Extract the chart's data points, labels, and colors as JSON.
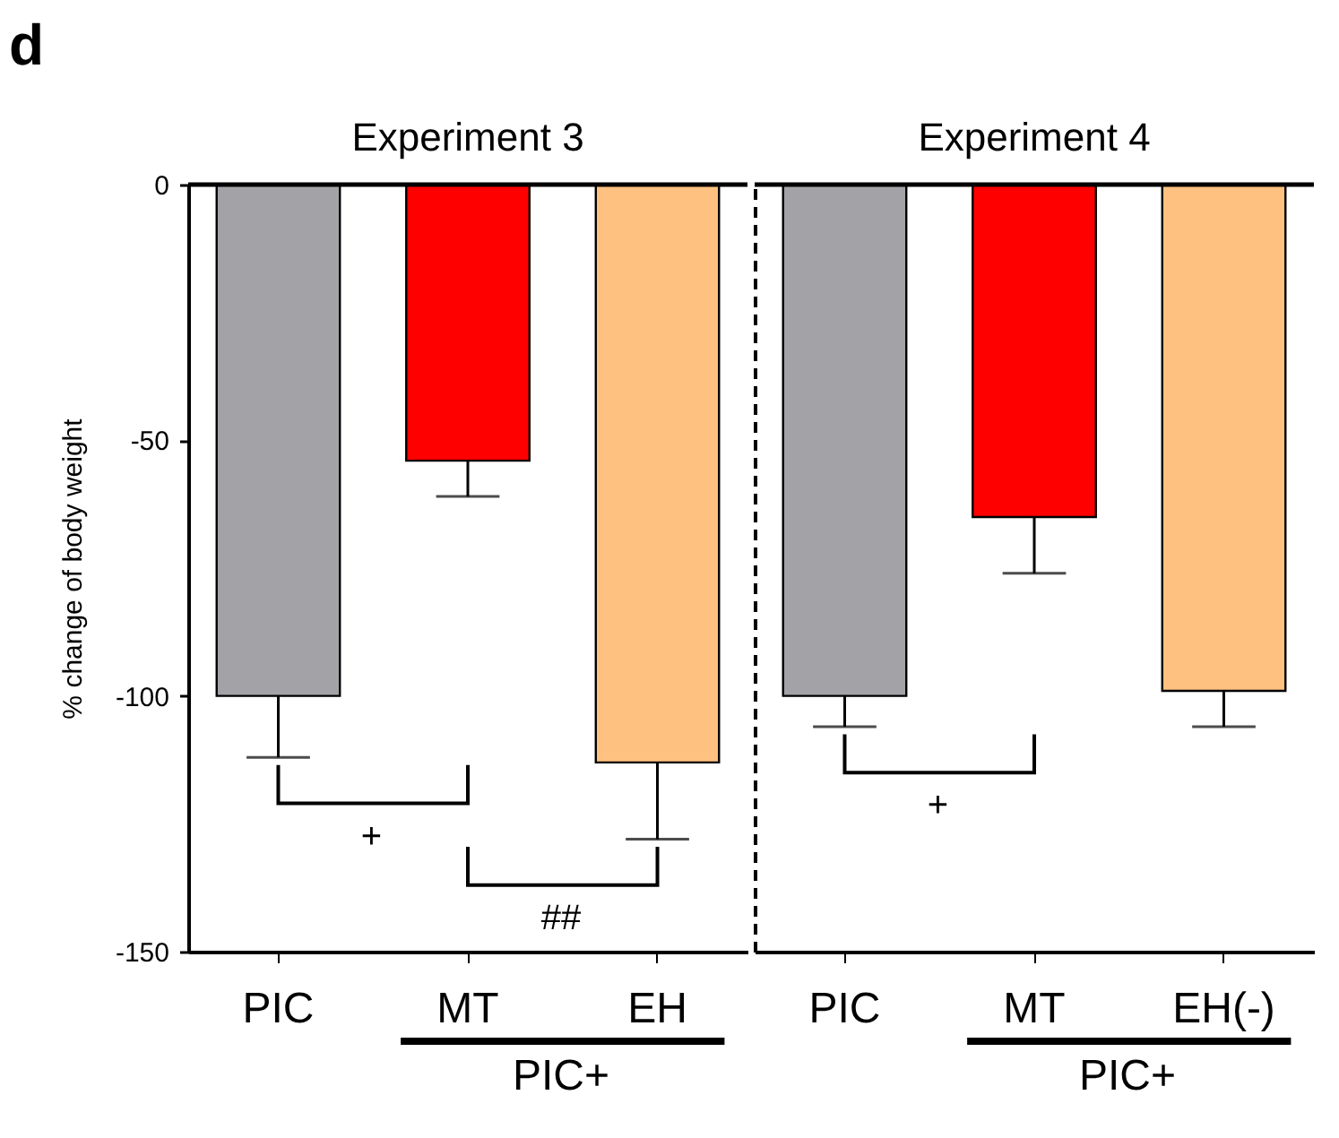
{
  "chart_data": [
    {
      "type": "bar",
      "title": "Experiment 3",
      "ylabel": "% change of body weight",
      "categories": [
        "PIC",
        "MT",
        "EH"
      ],
      "values": [
        -100,
        -54,
        -113
      ],
      "colors": [
        "#a3a2a6",
        "#ff0000",
        "#ffc17f"
      ],
      "errors": [
        [
          -112,
          -100
        ],
        [
          -61,
          -54
        ],
        [
          -128,
          -113
        ]
      ],
      "ylim": [
        -150,
        0
      ],
      "yticks": [
        0,
        -50,
        -100,
        -150
      ],
      "ref_lines": [
        {
          "axis": "y",
          "value": 0
        }
      ],
      "annotations": [
        "d",
        "+",
        "##",
        "PIC+"
      ]
    },
    {
      "type": "bar",
      "title": "Experiment 4",
      "categories": [
        "PIC",
        "MT",
        "EH(-)"
      ],
      "values": [
        -100,
        -65,
        -99
      ],
      "colors": [
        "#a3a2a6",
        "#ff0000",
        "#ffc17f"
      ],
      "errors": [
        [
          -106,
          -100
        ],
        [
          -76,
          -65
        ],
        [
          -106,
          -99
        ]
      ],
      "ylim": [
        -150,
        0
      ],
      "yticks": [
        0,
        -50,
        -100,
        -150
      ],
      "ref_lines": [
        {
          "axis": "y",
          "value": 0
        }
      ],
      "annotations": [
        "+",
        "PIC+"
      ],
      "tick_labels": "x"
    }
  ]
}
